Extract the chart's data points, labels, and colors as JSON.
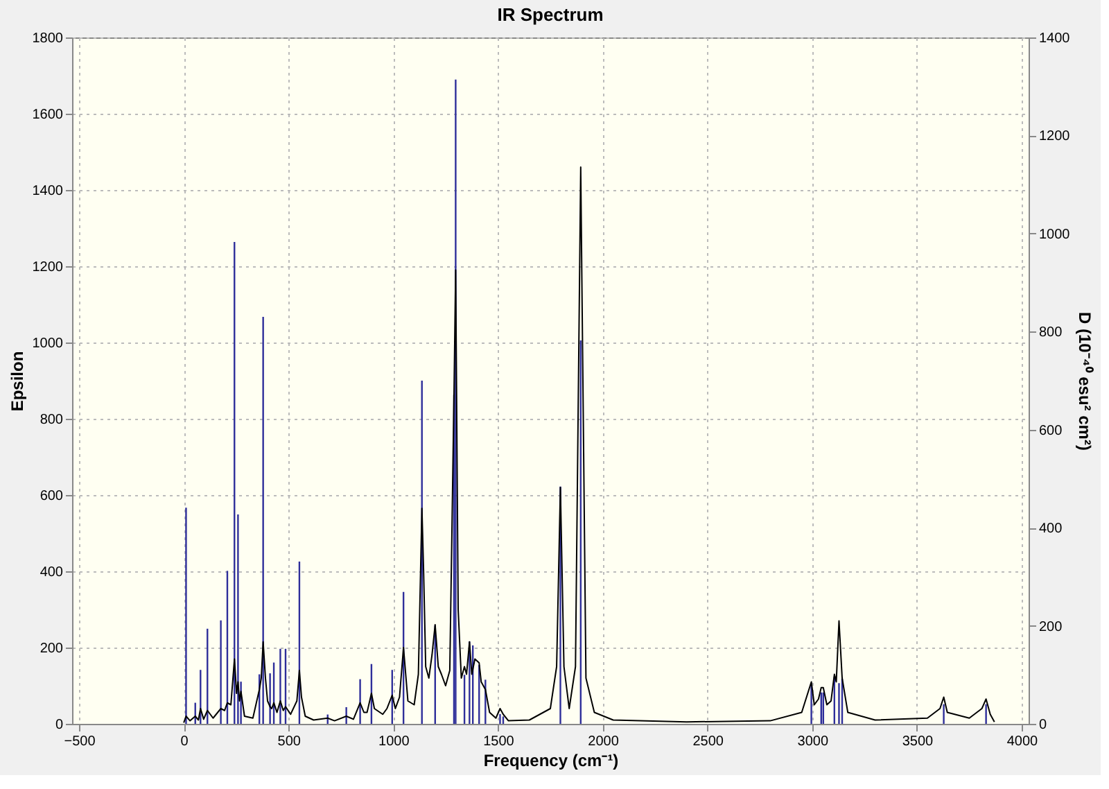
{
  "chart_data": {
    "type": "line",
    "title": "IR Spectrum",
    "xlabel": "Frequency (cm⁻¹)",
    "ylabel": "Epsilon",
    "y2label": "D (10⁻⁴⁰ esu² cm²)",
    "xlim": [
      -500,
      4000
    ],
    "xticks": [
      -500,
      0,
      500,
      1000,
      1500,
      2000,
      2500,
      3000,
      3500,
      4000
    ],
    "ylim": [
      0,
      1800
    ],
    "yticks": [
      0,
      200,
      400,
      600,
      800,
      1000,
      1200,
      1400,
      1600,
      1800
    ],
    "y2lim": [
      0,
      1400
    ],
    "y2ticks": [
      0,
      200,
      400,
      600,
      800,
      1000,
      1200,
      1400
    ],
    "grid": true,
    "line_style": "solid",
    "marker": "none",
    "series": [
      {
        "type": "bar",
        "axis": "y2",
        "color": "#2e2e9a",
        "x": [
          11,
          55,
          80,
          113,
          177,
          208,
          242,
          259,
          273,
          361,
          379,
          412,
          430,
          461,
          486,
          552,
          687,
          776,
          842,
          896,
          995,
          1049,
          1137,
          1200,
          1290,
          1298,
          1340,
          1364,
          1380,
          1410,
          1440,
          1510,
          1525,
          1798,
          1895,
          2996,
          3043,
          3053,
          3106,
          3128,
          3143,
          3628,
          3830
        ],
        "values": [
          441,
          43,
          110,
          194,
          211,
          312,
          983,
          427,
          86,
          101,
          830,
          103,
          125,
          153,
          153,
          331,
          19,
          34,
          91,
          122,
          110,
          269,
          700,
          201,
          671,
          1314,
          100,
          168,
          160,
          120,
          90,
          20,
          15,
          484,
          782,
          83,
          64,
          64,
          96,
          83,
          92,
          40,
          40
        ]
      },
      {
        "axis": "y",
        "color": "#000000",
        "x": [
          0,
          11,
          30,
          55,
          70,
          80,
          95,
          113,
          140,
          177,
          195,
          208,
          225,
          242,
          252,
          259,
          266,
          273,
          290,
          330,
          361,
          370,
          379,
          390,
          400,
          412,
          420,
          430,
          445,
          461,
          475,
          486,
          510,
          540,
          552,
          562,
          580,
          620,
          687,
          720,
          776,
          810,
          842,
          860,
          875,
          896,
          910,
          950,
          970,
          995,
          1010,
          1030,
          1049,
          1070,
          1100,
          1120,
          1137,
          1145,
          1155,
          1170,
          1185,
          1200,
          1215,
          1230,
          1250,
          1270,
          1290,
          1298,
          1310,
          1325,
          1340,
          1350,
          1364,
          1375,
          1390,
          1410,
          1420,
          1440,
          1460,
          1490,
          1510,
          1525,
          1550,
          1650,
          1750,
          1780,
          1798,
          1815,
          1840,
          1870,
          1895,
          1920,
          1960,
          2050,
          2400,
          2800,
          2950,
          2996,
          3010,
          3030,
          3043,
          3053,
          3070,
          3090,
          3106,
          3115,
          3128,
          3143,
          3170,
          3300,
          3550,
          3610,
          3628,
          3645,
          3750,
          3810,
          3830,
          3850,
          3870
        ],
        "values": [
          3,
          20,
          8,
          20,
          10,
          40,
          12,
          35,
          15,
          40,
          35,
          55,
          50,
          170,
          80,
          110,
          60,
          85,
          20,
          15,
          90,
          120,
          215,
          120,
          60,
          45,
          40,
          55,
          30,
          60,
          35,
          45,
          25,
          60,
          140,
          70,
          20,
          10,
          15,
          8,
          20,
          12,
          55,
          30,
          30,
          80,
          40,
          25,
          40,
          75,
          40,
          70,
          200,
          60,
          50,
          130,
          565,
          400,
          150,
          120,
          180,
          260,
          150,
          130,
          100,
          140,
          860,
          1190,
          300,
          120,
          150,
          130,
          215,
          130,
          170,
          160,
          110,
          90,
          30,
          15,
          40,
          25,
          8,
          10,
          40,
          150,
          620,
          150,
          40,
          150,
          1460,
          120,
          30,
          10,
          5,
          8,
          30,
          110,
          50,
          65,
          95,
          95,
          50,
          60,
          130,
          110,
          270,
          120,
          30,
          10,
          15,
          40,
          70,
          30,
          15,
          40,
          65,
          25,
          5
        ]
      }
    ]
  }
}
